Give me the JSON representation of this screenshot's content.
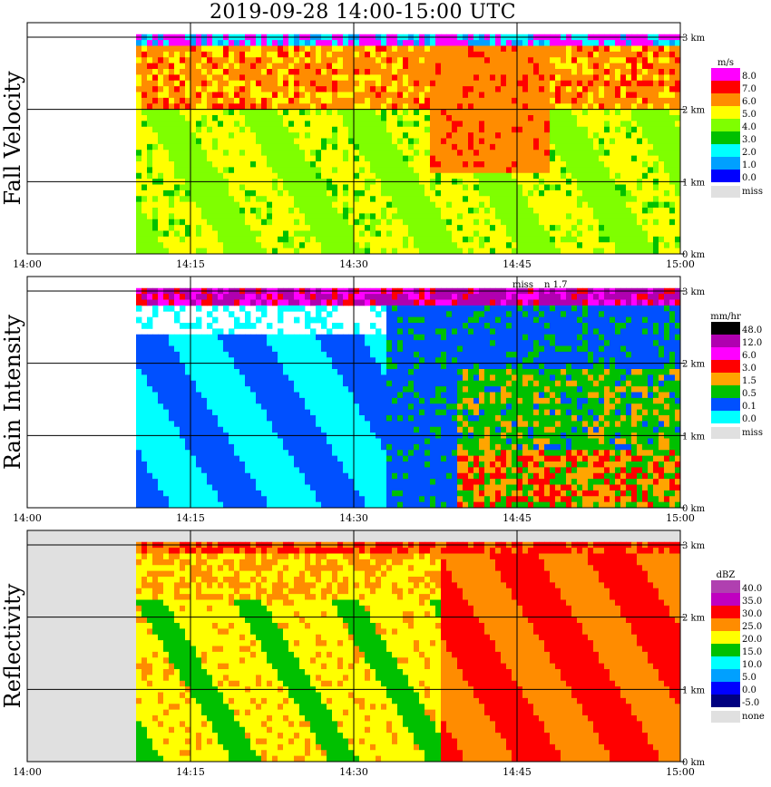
{
  "title": "2019-09-28   14:00-15:00 UTC",
  "colors": {
    "missing": "#e0e0e0",
    "grid": "#000000"
  },
  "chart_data": [
    {
      "type": "heatmap",
      "ylabel": "Fall Velocity",
      "x_ticks": [
        "14:00",
        "14:15",
        "14:30",
        "14:45",
        "15:00"
      ],
      "y_ticks": [
        "0 km",
        "1 km",
        "2 km",
        "3 km"
      ],
      "xlim": [
        "14:00",
        "15:00"
      ],
      "ylim": [
        0,
        3.2
      ],
      "grid": true,
      "legend": {
        "position": "right",
        "unit": "m/s",
        "entries": [
          {
            "label": "8.0",
            "color": "#ff00ff"
          },
          {
            "label": "7.0",
            "color": "#ff0000"
          },
          {
            "label": "6.0",
            "color": "#ff8c00"
          },
          {
            "label": "5.0",
            "color": "#ffff00"
          },
          {
            "label": "4.0",
            "color": "#7fff00"
          },
          {
            "label": "3.0",
            "color": "#00c000"
          },
          {
            "label": "2.0",
            "color": "#00ffff"
          },
          {
            "label": "1.0",
            "color": "#00a0ff"
          },
          {
            "label": "0.0",
            "color": "#0000ff"
          }
        ],
        "missing_label": "miss"
      }
    },
    {
      "type": "heatmap",
      "ylabel": "Rain Intensity",
      "x_ticks": [
        "14:00",
        "14:15",
        "14:30",
        "14:45",
        "15:00"
      ],
      "y_ticks": [
        "0 km",
        "1 km",
        "2 km",
        "3 km"
      ],
      "xlim": [
        "14:00",
        "15:00"
      ],
      "ylim": [
        0,
        3.2
      ],
      "grid": true,
      "annotations": [
        "miss",
        "n 1.7"
      ],
      "legend": {
        "position": "right",
        "unit": "mm/hr",
        "entries": [
          {
            "label": "48.0",
            "color": "#000000"
          },
          {
            "label": "12.0",
            "color": "#b000b0"
          },
          {
            "label": "6.0",
            "color": "#ff00ff"
          },
          {
            "label": "3.0",
            "color": "#ff0000"
          },
          {
            "label": "1.5",
            "color": "#ffa500"
          },
          {
            "label": "0.5",
            "color": "#00c000"
          },
          {
            "label": "0.1",
            "color": "#0050ff"
          },
          {
            "label": "0.0",
            "color": "#00ffff"
          }
        ],
        "missing_label": "miss"
      }
    },
    {
      "type": "heatmap",
      "ylabel": "Reflectivity",
      "x_ticks": [
        "14:00",
        "14:15",
        "14:30",
        "14:45",
        "15:00"
      ],
      "y_ticks": [
        "0 km",
        "1 km",
        "2 km",
        "3 km"
      ],
      "xlim": [
        "14:00",
        "15:00"
      ],
      "ylim": [
        0,
        3.2
      ],
      "grid": true,
      "legend": {
        "position": "right",
        "unit": "dBZ",
        "entries": [
          {
            "label": "40.0",
            "color": "#b040b0"
          },
          {
            "label": "35.0",
            "color": "#c000c0"
          },
          {
            "label": "30.0",
            "color": "#ff0000"
          },
          {
            "label": "25.0",
            "color": "#ff8c00"
          },
          {
            "label": "20.0",
            "color": "#ffff00"
          },
          {
            "label": "15.0",
            "color": "#00c000"
          },
          {
            "label": "10.0",
            "color": "#00ffff"
          },
          {
            "label": "5.0",
            "color": "#00a0ff"
          },
          {
            "label": "0.0",
            "color": "#0000ff"
          },
          {
            "label": "-5.0",
            "color": "#000080"
          }
        ],
        "missing_label": "none"
      }
    }
  ]
}
